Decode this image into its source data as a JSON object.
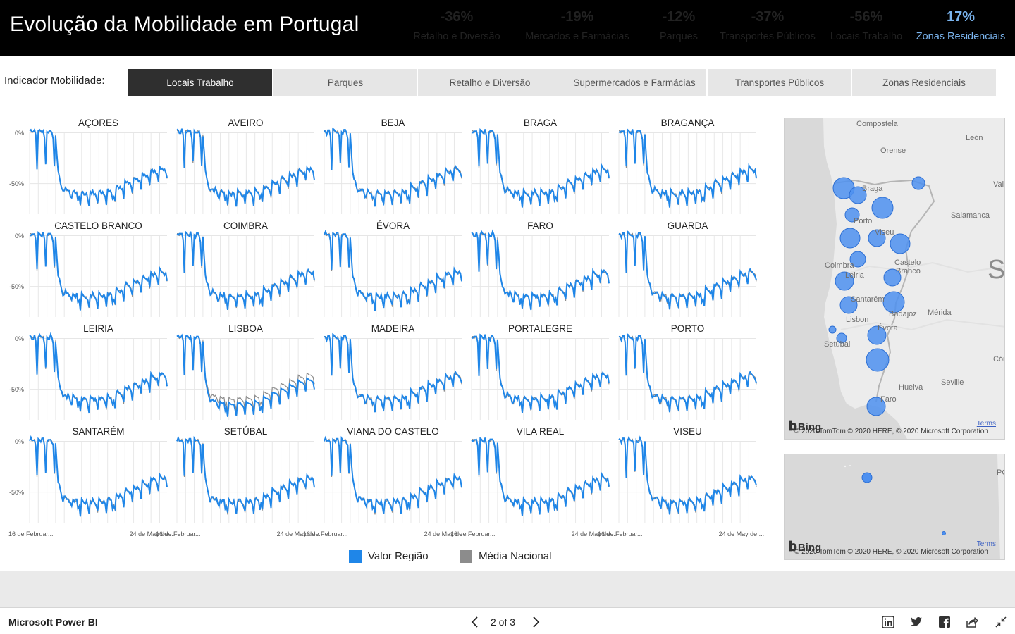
{
  "header": {
    "title": "Evolução da Mobilidade em Portugal",
    "kpis": [
      {
        "value": "-36%",
        "label": "Retalho e Diversão",
        "tone": "neg"
      },
      {
        "value": "-19%",
        "label": "Mercados e Farmácias",
        "tone": "neg"
      },
      {
        "value": "-12%",
        "label": "Parques",
        "tone": "neg"
      },
      {
        "value": "-37%",
        "label": "Transportes Públicos",
        "tone": "neg"
      },
      {
        "value": "-56%",
        "label": "Locais Trabalho",
        "tone": "neg"
      },
      {
        "value": "17%",
        "label": "Zonas Residenciais",
        "tone": "pos"
      }
    ]
  },
  "indicator": {
    "label": "Indicador Mobilidade:",
    "options": [
      "Locais Trabalho",
      "Parques",
      "Retalho e Diversão",
      "Supermercados e Farmácias",
      "Transportes Públicos",
      "Zonas Residenciais"
    ],
    "selected": "Locais Trabalho"
  },
  "chart_data": {
    "type": "line",
    "metric": "Locais Trabalho",
    "ytick_labels": [
      "0%",
      "-50%"
    ],
    "ytick_values": [
      0,
      -50
    ],
    "ylim": [
      -80,
      10
    ],
    "x_date_range": [
      "2020-02-15",
      "2020-06-05"
    ],
    "xtick_labels": [
      "16 de Februar...",
      "24 de May de ..."
    ],
    "xtick_dates": [
      "2020-02-16",
      "2020-05-24"
    ],
    "legend": [
      {
        "name": "Valor Região",
        "color": "#1f86e8"
      },
      {
        "name": "Média Nacional",
        "color": "#8c8c8c"
      }
    ],
    "regions": [
      "AÇORES",
      "AVEIRO",
      "BEJA",
      "BRAGA",
      "BRAGANÇA",
      "CASTELO BRANCO",
      "COIMBRA",
      "ÉVORA",
      "FARO",
      "GUARDA",
      "LEIRIA",
      "LISBOA",
      "MADEIRA",
      "PORTALEGRE",
      "PORTO",
      "SANTARÉM",
      "SETÚBAL",
      "VIANA DO CASTELO",
      "VILA REAL",
      "VISEU"
    ],
    "series": [
      {
        "name": "Média Nacional",
        "region": "all",
        "values": [
          2,
          2,
          0,
          1,
          2,
          -3,
          -35,
          2,
          2,
          1,
          1,
          2,
          -4,
          -30,
          1,
          0,
          1,
          2,
          0,
          -5,
          -32,
          -2,
          -20,
          -38,
          -44,
          -49,
          -54,
          -58,
          -56,
          -55,
          -57,
          -56,
          -58,
          -62,
          -64,
          -57,
          -58,
          -59,
          -58,
          -66,
          -63,
          -72,
          -58,
          -59,
          -60,
          -60,
          -60,
          -65,
          -71,
          -58,
          -59,
          -58,
          -60,
          -61,
          -63,
          -70,
          -57,
          -58,
          -59,
          -59,
          -60,
          -62,
          -70,
          -56,
          -57,
          -58,
          -58,
          -66,
          -62,
          -68,
          -52,
          -53,
          -54,
          -54,
          -55,
          -56,
          -64,
          -48,
          -48,
          -49,
          -49,
          -50,
          -52,
          -60,
          -44,
          -45,
          -45,
          -46,
          -47,
          -48,
          -55,
          -40,
          -41,
          -42,
          -42,
          -43,
          -44,
          -52,
          -36,
          -37,
          -38,
          -38,
          -39,
          -41,
          -47,
          -34,
          -35,
          -36,
          -36,
          -37,
          -38,
          -45
        ]
      },
      {
        "name": "Valor Região",
        "region": "AÇORES",
        "values": [
          2,
          3,
          1,
          1,
          3,
          -2,
          -36,
          2,
          3,
          2,
          0,
          2,
          -5,
          -31,
          1,
          0,
          2,
          2,
          0,
          -6,
          -33,
          -3,
          -21,
          -37,
          -43,
          -50,
          -55,
          -57,
          -57,
          -54,
          -56,
          -57,
          -57,
          -63,
          -64,
          -58,
          -57,
          -60,
          -59,
          -67,
          -62,
          -71,
          -59,
          -58,
          -61,
          -61,
          -59,
          -66,
          -72,
          -57,
          -60,
          -57,
          -61,
          -60,
          -64,
          -69,
          -58,
          -57,
          -60,
          -58,
          -61,
          -63,
          -71,
          -55,
          -58,
          -57,
          -59,
          -65,
          -63,
          -67,
          -53,
          -52,
          -55,
          -53,
          -56,
          -55,
          -65,
          -47,
          -49,
          -48,
          -50,
          -49,
          -53,
          -59,
          -45,
          -44,
          -46,
          -45,
          -48,
          -47,
          -56,
          -39,
          -42,
          -41,
          -43,
          -42,
          -45,
          -51,
          -37,
          -36,
          -39,
          -37,
          -40,
          -40,
          -48,
          -33,
          -36,
          -35,
          -37,
          -36,
          -39,
          -44
        ]
      },
      {
        "name": "Valor Região",
        "region": "LISBOA",
        "values": [
          2,
          3,
          1,
          1,
          3,
          -2,
          -36,
          2,
          3,
          2,
          0,
          2,
          -5,
          -31,
          1,
          0,
          2,
          2,
          0,
          -6,
          -33,
          -3,
          -22,
          -40,
          -47,
          -53,
          -58,
          -62,
          -61,
          -60,
          -62,
          -61,
          -63,
          -67,
          -69,
          -62,
          -63,
          -64,
          -63,
          -71,
          -68,
          -77,
          -63,
          -64,
          -65,
          -65,
          -65,
          -70,
          -76,
          -63,
          -64,
          -63,
          -65,
          -66,
          -68,
          -75,
          -62,
          -63,
          -64,
          -64,
          -65,
          -67,
          -75,
          -61,
          -62,
          -63,
          -63,
          -71,
          -67,
          -73,
          -57,
          -58,
          -59,
          -59,
          -60,
          -61,
          -69,
          -53,
          -53,
          -54,
          -54,
          -55,
          -57,
          -65,
          -49,
          -50,
          -50,
          -51,
          -52,
          -53,
          -60,
          -45,
          -46,
          -47,
          -47,
          -48,
          -49,
          -57,
          -41,
          -42,
          -43,
          -43,
          -44,
          -46,
          -52,
          -39,
          -40,
          -41,
          -41,
          -42,
          -43,
          -50
        ]
      }
    ]
  },
  "maps": {
    "main_labels": [
      "Compostela",
      "Orense",
      "León",
      "Braga",
      "Valla",
      "Salamanca",
      "Porto",
      "Viseu",
      "Coimbra",
      "Leiria",
      "Castelo",
      "Branco",
      "Santarém",
      "Badajoz",
      "Mérida",
      "Lisbon",
      "Évora",
      "Setúbal",
      "Córd",
      "Seville",
      "Huelva",
      "Faro",
      "S"
    ],
    "bing": "Bing",
    "copyright": "© 2020 TomTom © 2020 HERE, © 2020 Microsoft Corporation",
    "terms": "Terms",
    "azores_labels": [
      "PO"
    ],
    "accent_color": "#4d90f0"
  },
  "footer": {
    "brand": "Microsoft Power BI",
    "page_indicator": "2 of 3"
  }
}
